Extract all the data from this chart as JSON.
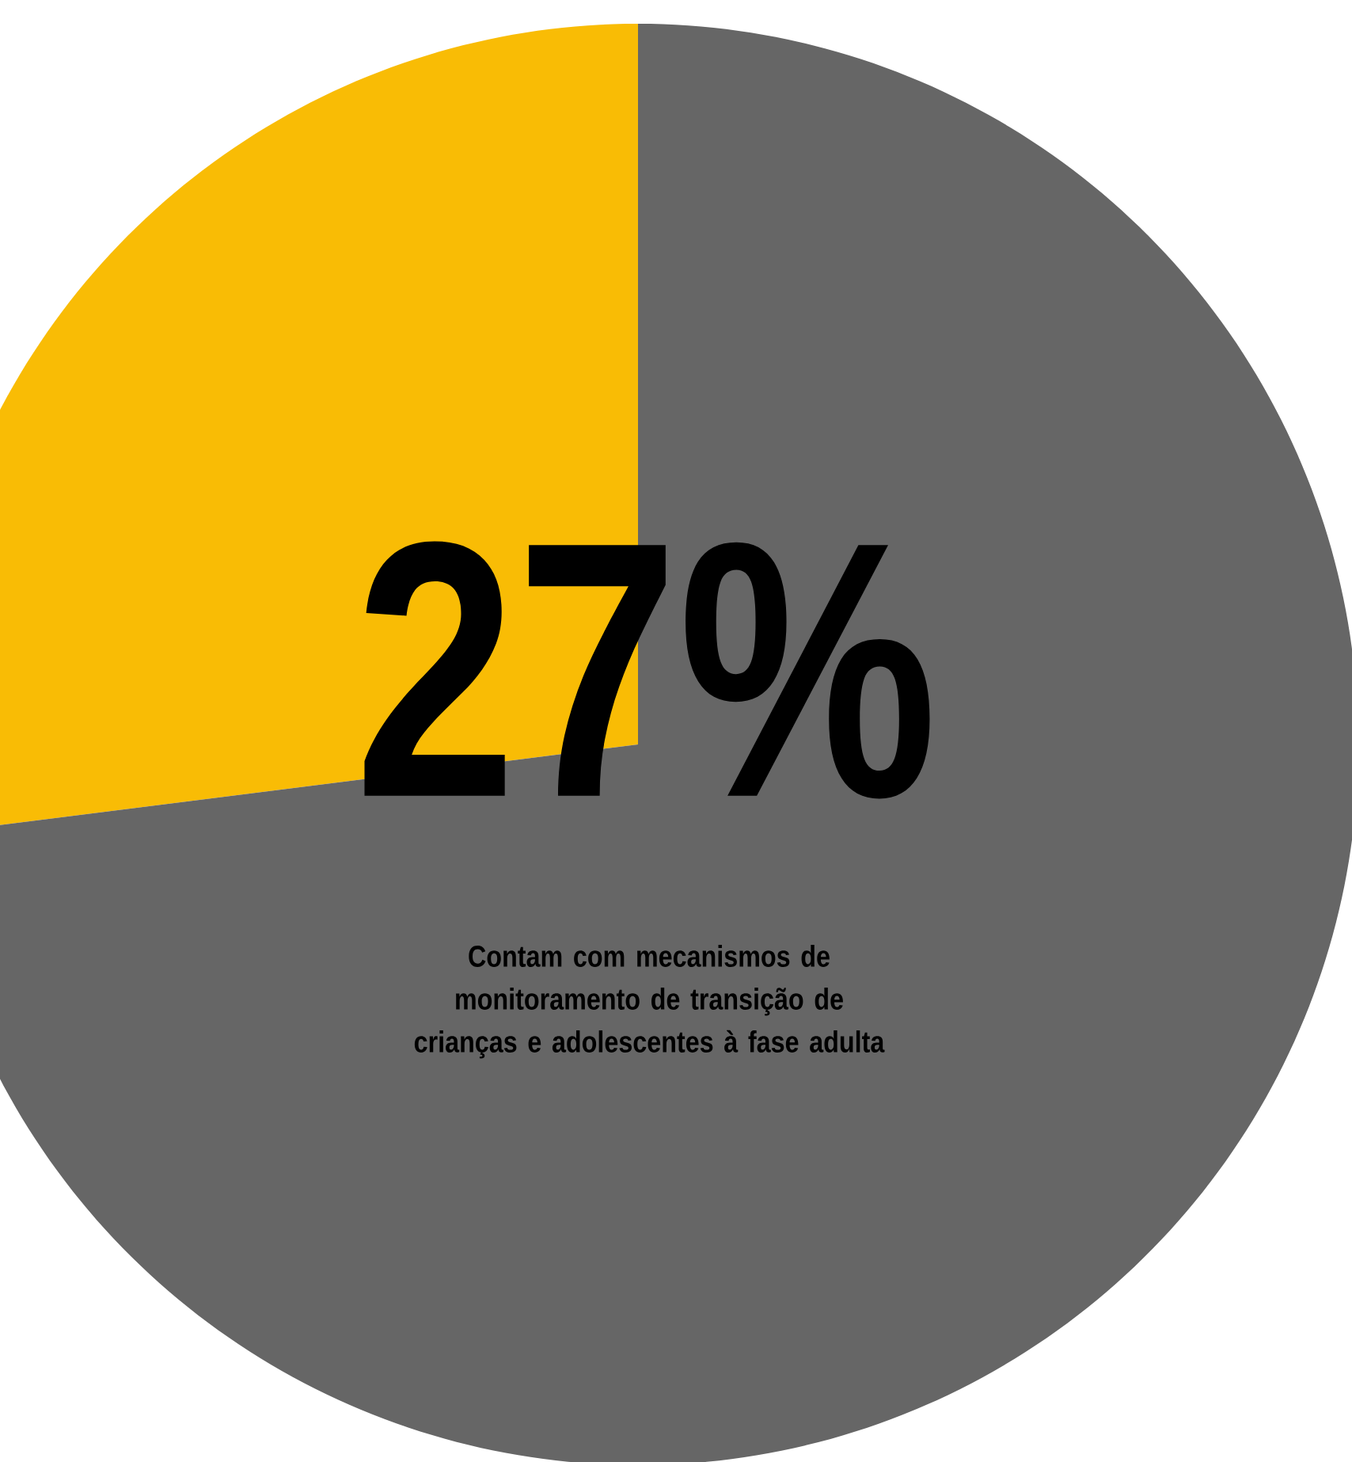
{
  "chart_data": {
    "type": "pie",
    "categories": [
      null,
      null
    ],
    "values": [
      27,
      73
    ],
    "colors": [
      "#f9bc05",
      "#666666"
    ],
    "value_labels": [
      "27%",
      null
    ],
    "annotations": [
      "Contam com mecanismos de monitoramento de transição de crianças e adolescentes à fase adulta"
    ]
  }
}
